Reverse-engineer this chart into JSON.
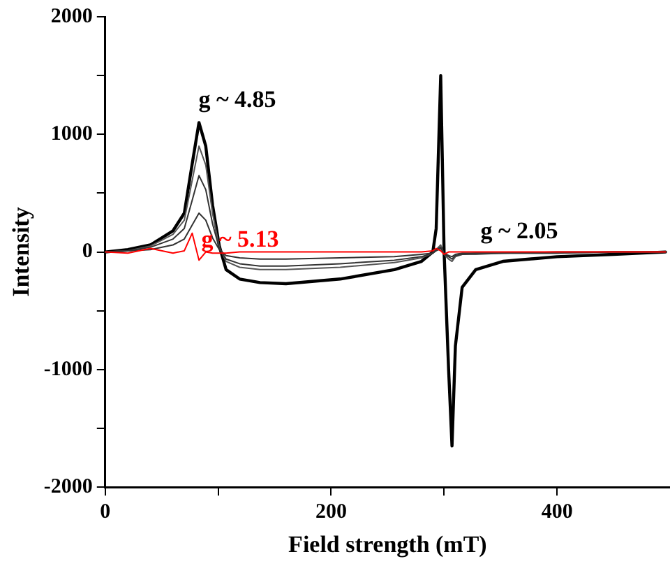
{
  "chart_data": {
    "type": "line",
    "xlabel": "Field strength (mT)",
    "ylabel": "Intensity",
    "x": [
      0,
      20,
      40,
      60,
      70,
      77,
      83,
      89,
      95,
      101,
      107,
      119,
      137,
      160,
      208,
      256,
      280,
      290,
      293,
      297,
      300,
      304,
      307,
      310,
      316,
      328,
      352,
      400,
      450,
      496
    ],
    "series": [
      {
        "color": "#000000",
        "values": [
          0,
          20,
          60,
          180,
          330,
          750,
          1100,
          900,
          400,
          50,
          -150,
          -230,
          -260,
          -270,
          -230,
          -150,
          -80,
          0,
          200,
          1500,
          0,
          -1000,
          -1650,
          -800,
          -300,
          -150,
          -80,
          -40,
          -20,
          0
        ]
      },
      {
        "color": "#555555",
        "values": [
          0,
          10,
          50,
          150,
          270,
          610,
          900,
          740,
          330,
          40,
          -80,
          -130,
          -150,
          -150,
          -130,
          -90,
          -50,
          -10,
          20,
          60,
          -20,
          -60,
          -80,
          -40,
          -20,
          -20,
          -10,
          -10,
          0,
          0
        ]
      },
      {
        "color": "#333333",
        "values": [
          0,
          10,
          40,
          110,
          200,
          440,
          650,
          530,
          240,
          30,
          -60,
          -100,
          -120,
          -120,
          -100,
          -70,
          -40,
          -10,
          20,
          40,
          -20,
          -40,
          -60,
          -30,
          -20,
          -10,
          -10,
          -10,
          0,
          0
        ]
      },
      {
        "color": "#333333",
        "values": [
          0,
          10,
          20,
          60,
          110,
          230,
          330,
          270,
          120,
          20,
          -30,
          -50,
          -60,
          -60,
          -50,
          -40,
          -20,
          -10,
          10,
          30,
          -10,
          -30,
          -40,
          -20,
          -10,
          -10,
          -10,
          0,
          0,
          0
        ]
      },
      {
        "color": "#ff0000",
        "values": [
          0,
          -10,
          30,
          -10,
          10,
          160,
          -70,
          0,
          -10,
          -10,
          -10,
          0,
          0,
          0,
          0,
          0,
          0,
          10,
          30,
          10,
          -20,
          0,
          0,
          0,
          0,
          0,
          0,
          0,
          0,
          0
        ]
      }
    ],
    "xlim": [
      0,
      500
    ],
    "xticks": [
      0,
      {
        "value": 100,
        "label": null
      },
      200,
      {
        "value": 300,
        "label": null
      },
      400
    ],
    "ylim": [
      -2000,
      2000
    ],
    "yticks": [
      -2000,
      {
        "value": -1500,
        "label": null
      },
      -1000,
      {
        "value": -500,
        "label": null
      },
      0,
      {
        "value": 500,
        "label": null
      },
      1000,
      {
        "value": 1500,
        "label": null
      },
      2000
    ],
    "annotations": [
      "g ~ 4.85",
      "g ~ 5.13",
      "g ~ 2.05"
    ],
    "legend": false,
    "grid": false,
    "marker": "none",
    "line_style": "solid"
  }
}
